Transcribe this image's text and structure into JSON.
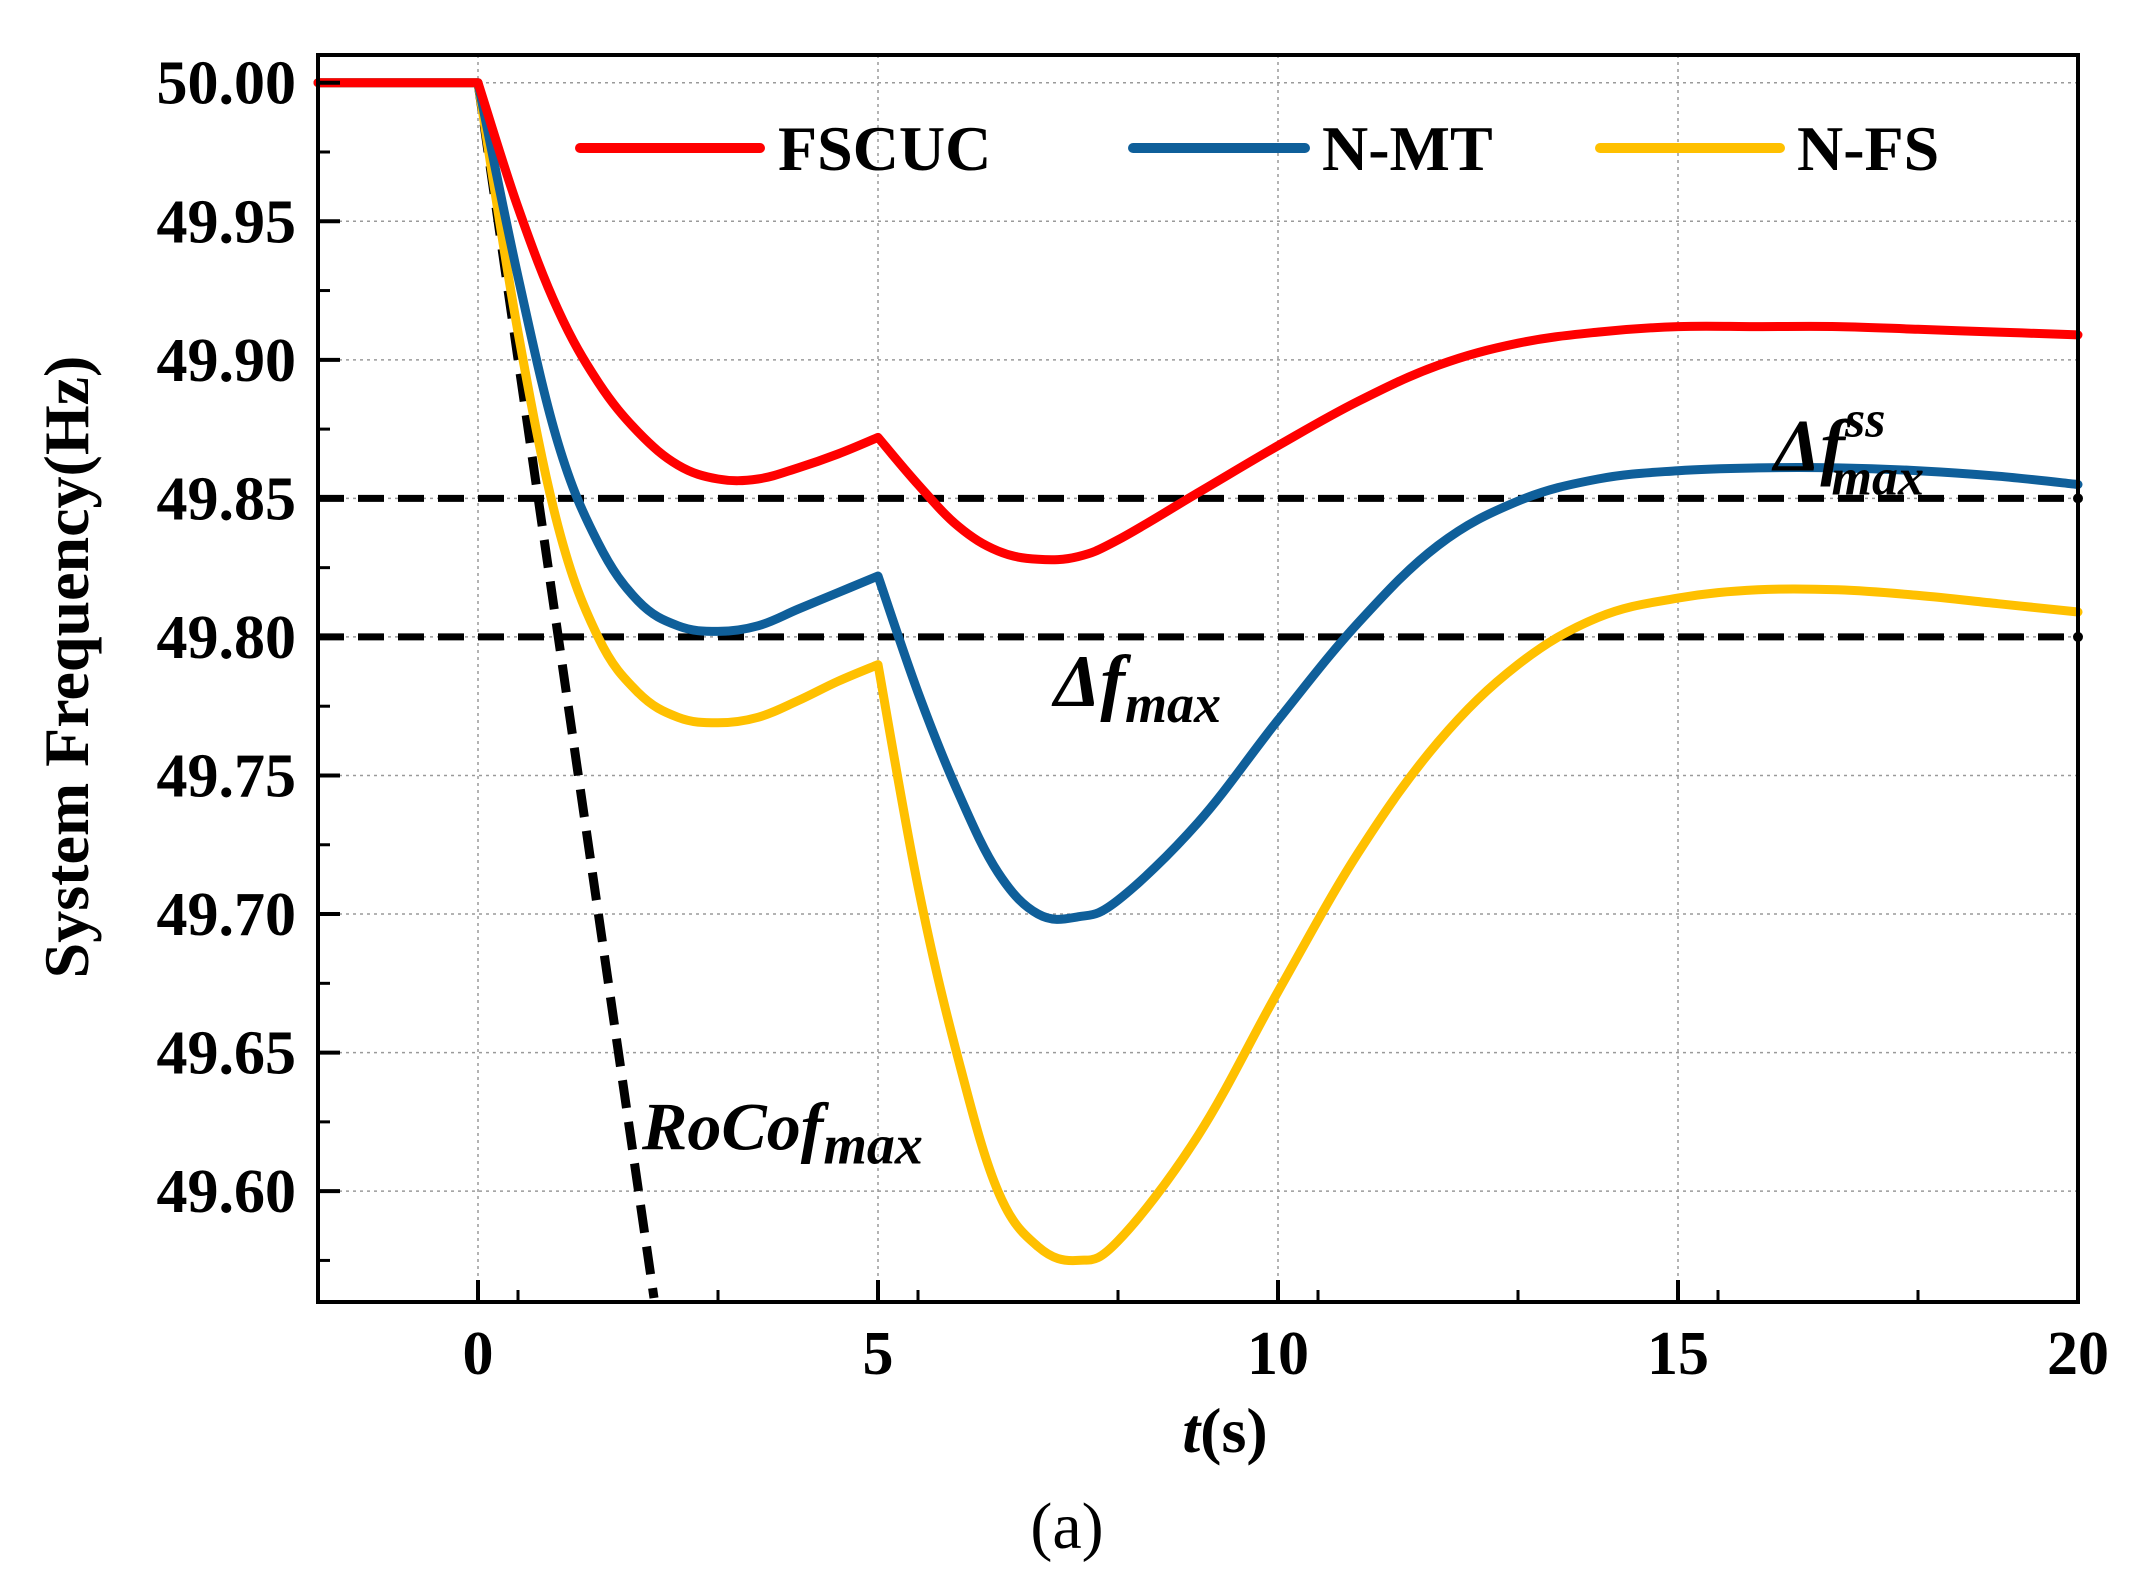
{
  "chart_data": {
    "type": "line",
    "xlabel": "t(s)",
    "xlabel_italic_part": "t",
    "xlabel_rest": "(s)",
    "ylabel": "System Frequency(Hz)",
    "caption": "(a)",
    "xlim": [
      -2,
      20
    ],
    "ylim": [
      49.56,
      50.01
    ],
    "xticks": [
      0,
      5,
      10,
      15,
      20
    ],
    "yticks": [
      50.0,
      49.95,
      49.9,
      49.85,
      49.8,
      49.75,
      49.7,
      49.65,
      49.6
    ],
    "ytick_labels": [
      "50.00",
      "49.95",
      "49.90",
      "49.85",
      "49.80",
      "49.75",
      "49.70",
      "49.65",
      "49.60"
    ],
    "grid": true,
    "legend_position": "top",
    "series": [
      {
        "name": "FSCUC",
        "color": "#ff0000",
        "x": [
          -2,
          0,
          0.5,
          1,
          1.5,
          2,
          2.5,
          3,
          3.5,
          4,
          4.5,
          5,
          5.5,
          6,
          6.5,
          7,
          7.5,
          8,
          9,
          10,
          11,
          12,
          13,
          14,
          15,
          16,
          17,
          18,
          19,
          20
        ],
        "y": [
          50.0,
          50.0,
          49.955,
          49.918,
          49.892,
          49.874,
          49.862,
          49.857,
          49.857,
          49.861,
          49.866,
          49.872,
          49.855,
          49.84,
          49.831,
          49.828,
          49.829,
          49.835,
          49.852,
          49.869,
          49.885,
          49.898,
          49.906,
          49.91,
          49.912,
          49.912,
          49.912,
          49.911,
          49.91,
          49.909
        ]
      },
      {
        "name": "N-MT",
        "color": "#0f5f9a",
        "x": [
          -2,
          0,
          0.5,
          1,
          1.5,
          2,
          2.5,
          3,
          3.5,
          4,
          4.5,
          5,
          5.5,
          6,
          6.5,
          7,
          7.5,
          8,
          9,
          10,
          11,
          12,
          13,
          14,
          15,
          16,
          17,
          18,
          19,
          20
        ],
        "y": [
          50.0,
          50.0,
          49.93,
          49.87,
          49.834,
          49.813,
          49.804,
          49.802,
          49.804,
          49.81,
          49.816,
          49.822,
          49.78,
          49.744,
          49.715,
          49.7,
          49.699,
          49.705,
          49.733,
          49.77,
          49.805,
          49.833,
          49.849,
          49.857,
          49.86,
          49.861,
          49.861,
          49.86,
          49.858,
          49.855
        ]
      },
      {
        "name": "N-FS",
        "color": "#ffc000",
        "x": [
          -2,
          0,
          0.5,
          1,
          1.5,
          2,
          2.5,
          3,
          3.5,
          4,
          4.5,
          5,
          5.5,
          6,
          6.5,
          7,
          7.5,
          8,
          9,
          10,
          11,
          12,
          13,
          14,
          15,
          16,
          17,
          18,
          19,
          20
        ],
        "y": [
          50.0,
          50.0,
          49.91,
          49.84,
          49.8,
          49.78,
          49.771,
          49.769,
          49.771,
          49.777,
          49.784,
          49.79,
          49.71,
          49.648,
          49.6,
          49.58,
          49.575,
          49.582,
          49.62,
          49.672,
          49.722,
          49.762,
          49.79,
          49.807,
          49.814,
          49.817,
          49.817,
          49.815,
          49.812,
          49.809
        ]
      }
    ],
    "reference_lines": [
      {
        "name": "Δf^ss_max",
        "y": 49.85
      },
      {
        "name": "Δf_max",
        "y": 49.8
      }
    ],
    "rocof_line": {
      "x": [
        0,
        2.2
      ],
      "y": [
        50.0,
        49.557
      ]
    },
    "annotations": [
      {
        "name": "delta-f-ss-max",
        "base": "Δf",
        "sup": "ss",
        "sub": "max",
        "x": 16.2,
        "y": 49.86
      },
      {
        "name": "delta-f-max",
        "base": "Δf",
        "sub": "max",
        "x": 7.2,
        "y": 49.775
      },
      {
        "name": "rocof-max",
        "base": "RoCof",
        "sub": "max",
        "x": 2.05,
        "y": 49.615
      }
    ]
  }
}
